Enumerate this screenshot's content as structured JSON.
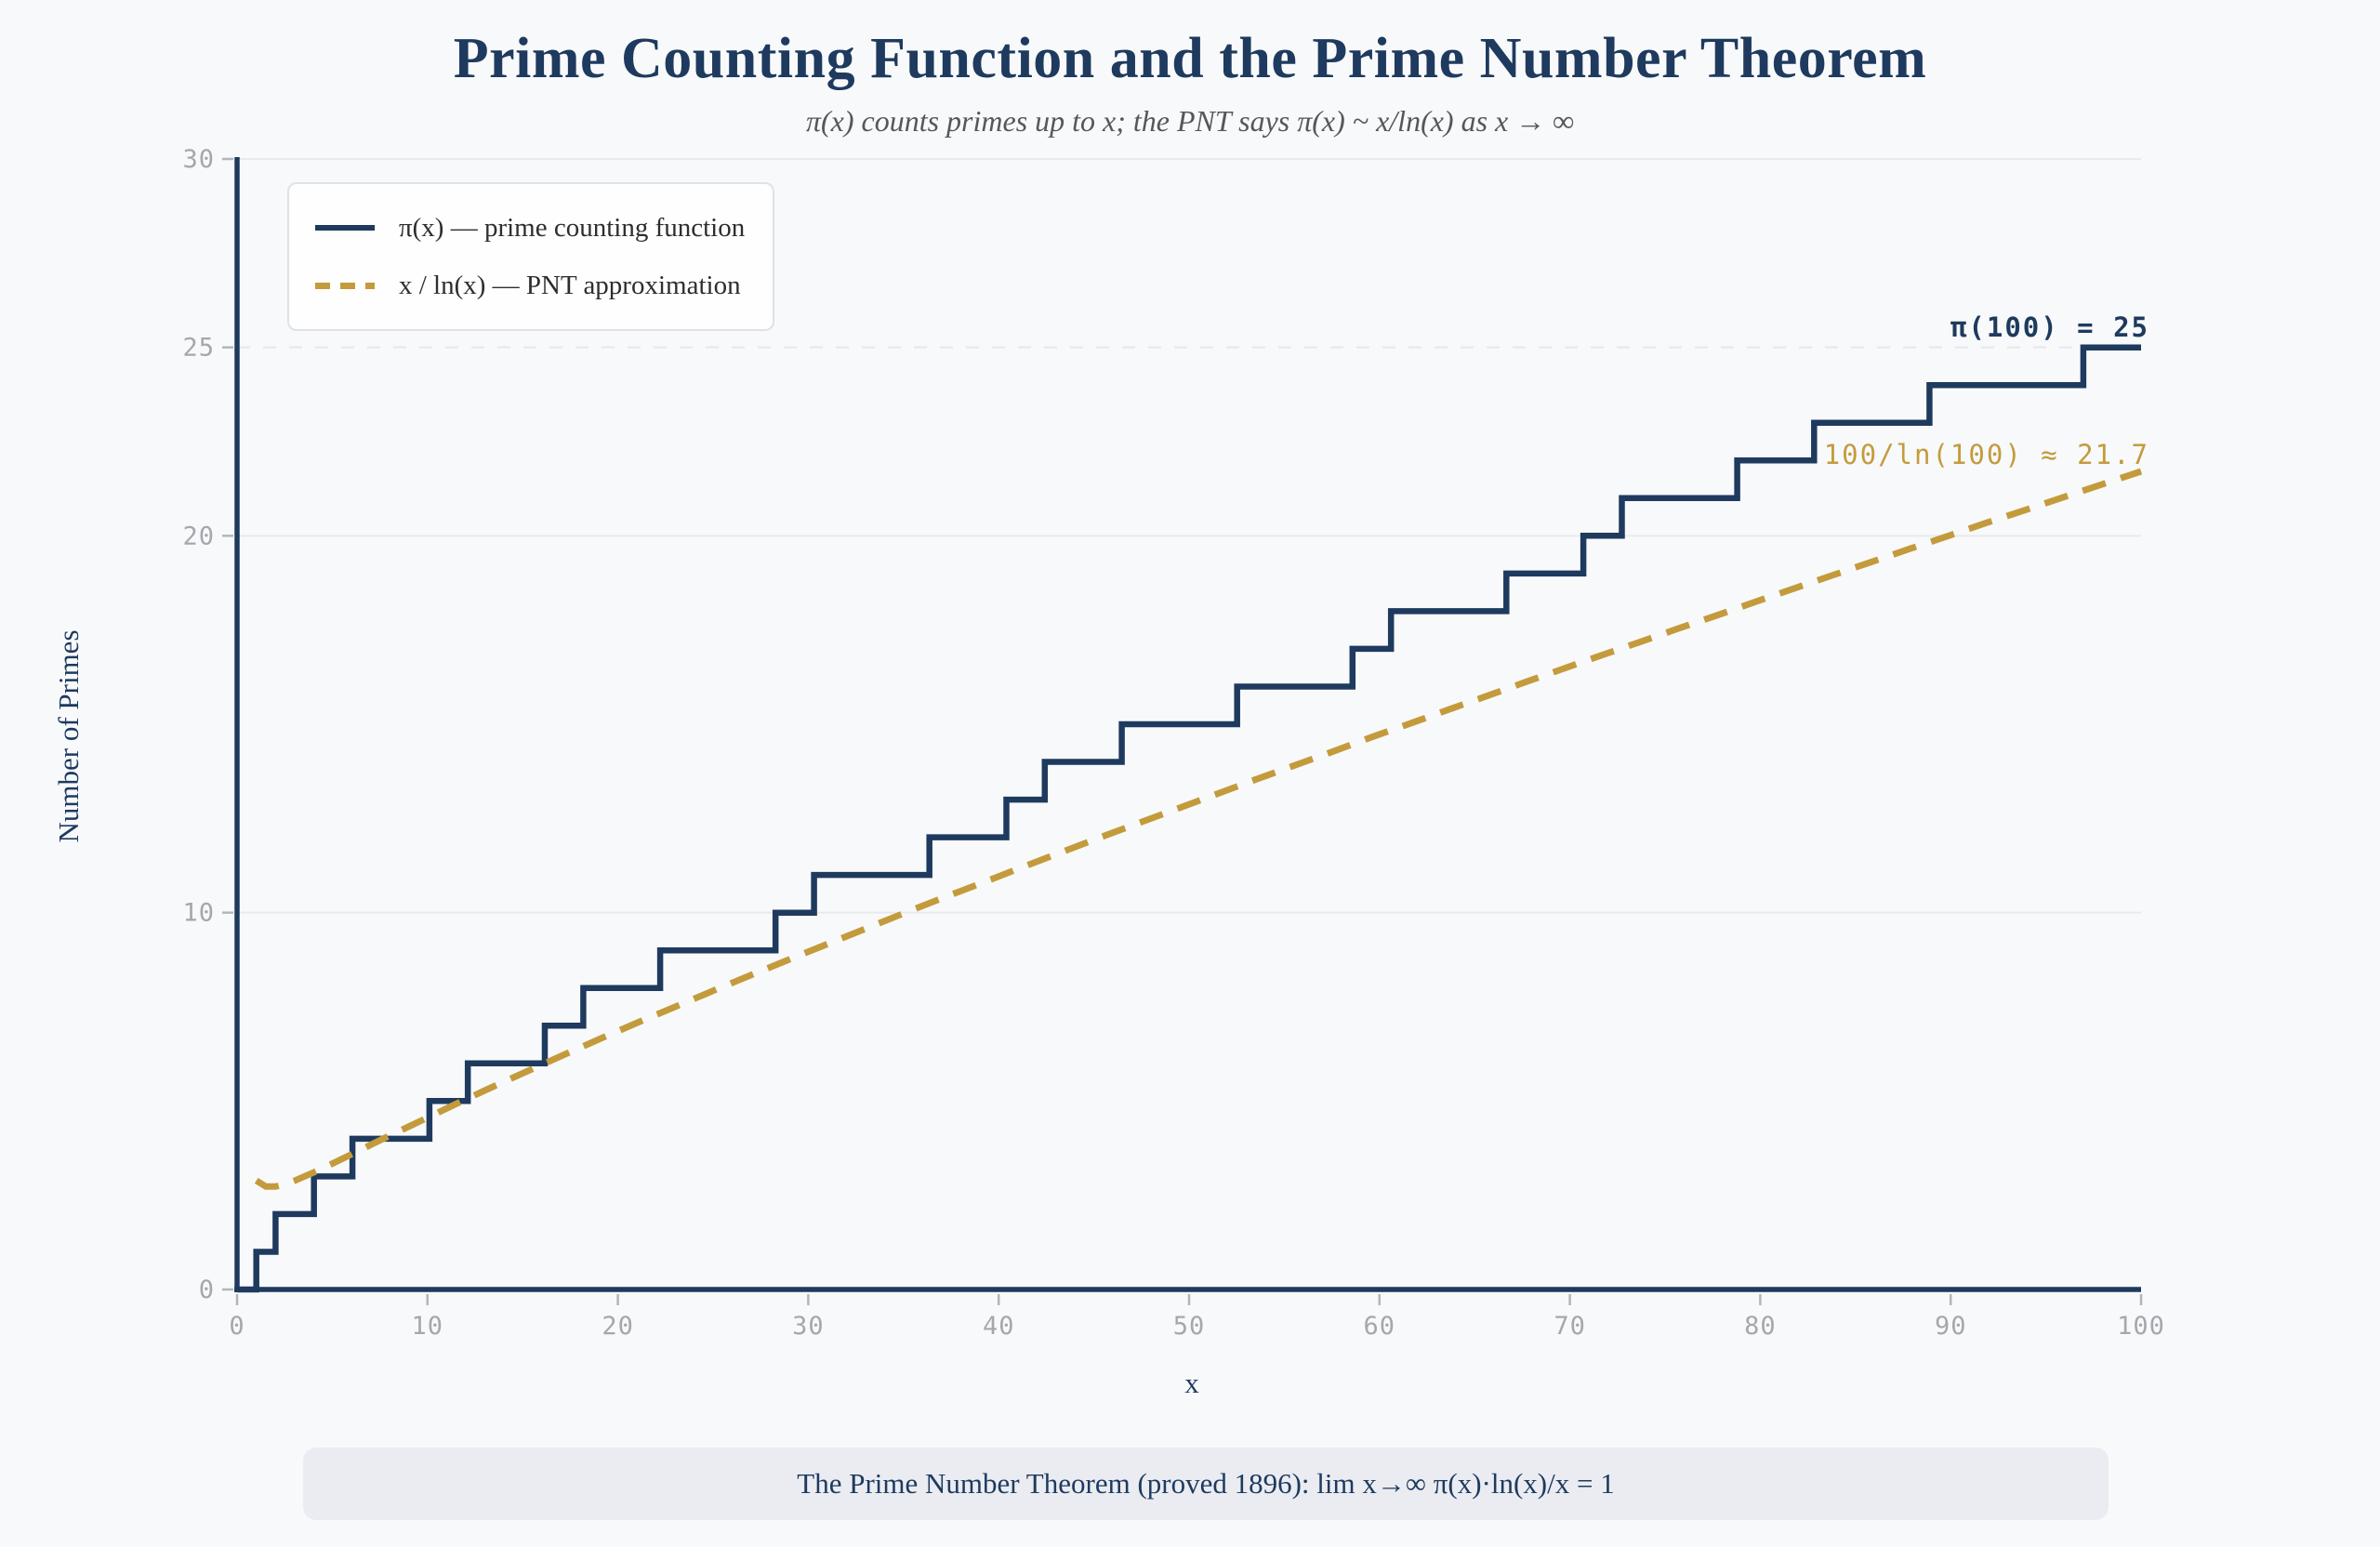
{
  "colors": {
    "background": "#f8f9fb",
    "navy": "#1e3a5e",
    "gold": "#c49b3c",
    "grid": "#e8eaed",
    "tick_label": "#a4a8ad",
    "caption_bg": "#eaecf2",
    "legend_border": "#dfe2e6"
  },
  "chart_data": {
    "type": "line",
    "title": "Prime Counting Function and the Prime Number Theorem",
    "subtitle": "π(x) counts primes up to x; the PNT says π(x) ~ x/ln(x) as x → ∞",
    "xlabel": "x",
    "ylabel": "Number of Primes",
    "xlim": [
      0,
      100
    ],
    "ylim": [
      0,
      30
    ],
    "x_ticks": [
      0,
      10,
      20,
      30,
      40,
      50,
      60,
      70,
      80,
      90,
      100
    ],
    "y_ticks": [
      0,
      10,
      20,
      25,
      30
    ],
    "gridlines_y": {
      "solid": [
        10,
        20,
        30
      ],
      "dashed": [
        25
      ]
    },
    "legend_position": "upper left",
    "series": [
      {
        "name": "π(x) — prime counting function",
        "type": "step",
        "style": "solid",
        "color": "#1e3a5e",
        "description": "π(x) increases by 1 at each prime; starts at 0, ends at π(100) = 25",
        "primes": [
          2,
          3,
          5,
          7,
          11,
          13,
          17,
          19,
          23,
          29,
          31,
          37,
          41,
          43,
          47,
          53,
          59,
          61,
          67,
          71,
          73,
          79,
          83,
          89,
          97
        ],
        "y_start": 0,
        "y_end": 25,
        "x_end": 100
      },
      {
        "name": "x / ln(x) — PNT approximation",
        "type": "line",
        "style": "dashed",
        "color": "#c49b3c",
        "points": [
          [
            2,
            2.89
          ],
          [
            2.5,
            2.73
          ],
          [
            3,
            2.73
          ],
          [
            3.5,
            2.79
          ],
          [
            4,
            2.89
          ],
          [
            5,
            3.11
          ],
          [
            6,
            3.35
          ],
          [
            7,
            3.6
          ],
          [
            8,
            3.85
          ],
          [
            9,
            4.1
          ],
          [
            10,
            4.34
          ],
          [
            12,
            4.83
          ],
          [
            14,
            5.31
          ],
          [
            16,
            5.77
          ],
          [
            18,
            6.23
          ],
          [
            20,
            6.68
          ],
          [
            22,
            7.12
          ],
          [
            24,
            7.55
          ],
          [
            26,
            7.98
          ],
          [
            28,
            8.4
          ],
          [
            30,
            8.82
          ],
          [
            32,
            9.23
          ],
          [
            34,
            9.64
          ],
          [
            36,
            10.05
          ],
          [
            38,
            10.45
          ],
          [
            40,
            10.84
          ],
          [
            42,
            11.24
          ],
          [
            44,
            11.63
          ],
          [
            46,
            12.02
          ],
          [
            48,
            12.4
          ],
          [
            50,
            12.78
          ],
          [
            52,
            13.16
          ],
          [
            54,
            13.54
          ],
          [
            56,
            13.91
          ],
          [
            58,
            14.28
          ],
          [
            60,
            14.66
          ],
          [
            62,
            15.02
          ],
          [
            64,
            15.39
          ],
          [
            66,
            15.75
          ],
          [
            68,
            16.12
          ],
          [
            70,
            16.48
          ],
          [
            72,
            16.84
          ],
          [
            74,
            17.19
          ],
          [
            76,
            17.55
          ],
          [
            78,
            17.9
          ],
          [
            80,
            18.26
          ],
          [
            82,
            18.61
          ],
          [
            84,
            18.96
          ],
          [
            86,
            19.31
          ],
          [
            88,
            19.66
          ],
          [
            90,
            20.0
          ],
          [
            92,
            20.35
          ],
          [
            94,
            20.69
          ],
          [
            96,
            21.03
          ],
          [
            98,
            21.37
          ],
          [
            100,
            21.71
          ]
        ]
      }
    ],
    "annotations": [
      {
        "text": "π(100) = 25",
        "color": "#1e3a5e",
        "bold": true
      },
      {
        "text": "100/ln(100) ≈ 21.7",
        "color": "#c49b3c",
        "bold": false
      }
    ]
  },
  "caption": {
    "text": "The Prime Number Theorem (proved 1896): lim x→∞ π(x)·ln(x)/x = 1"
  }
}
